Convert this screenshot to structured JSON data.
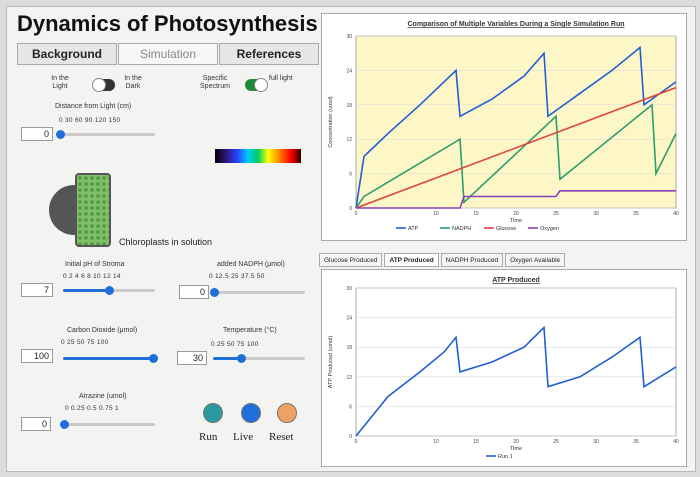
{
  "app": {
    "title": "Dynamics of Photosynthesis"
  },
  "tabs": [
    "Background",
    "Simulation",
    "References"
  ],
  "controls": {
    "light_toggle": {
      "left_label": "In the Light",
      "right_label": "In the Dark"
    },
    "spectrum_toggle": {
      "left_label": "Specific Spectrum",
      "right_label": "full light"
    },
    "distance": {
      "label": "Distance from Light (cm)",
      "ticks": "0    30   60   90   120  150",
      "value": "0"
    },
    "ph": {
      "label": "Initial pH of Stroma",
      "ticks": "0  2  4  6  8  10 12 14",
      "value": "7"
    },
    "nadph": {
      "label": "added NADPH (μmol)",
      "ticks": "0     12.5   25   37.5   50",
      "value": "0"
    },
    "co2": {
      "label": "Carbon Dioxide (μmol)",
      "ticks": "0    25    50    75   100",
      "value": "100"
    },
    "temp": {
      "label": "Temperature (°C)",
      "ticks": "0    25    50    75   100",
      "value": "30"
    },
    "atrazine": {
      "label": "Atrazine (umol)",
      "ticks": "0  0.25  0.5  0.75   1",
      "value": "0"
    },
    "caption": "Chloroplasts in solution",
    "buttons": {
      "run": "Run",
      "live": "Live",
      "reset": "Reset"
    }
  },
  "chart_top": {
    "title": "Comparison of Multiple Variables During a Single Simulation Run",
    "ylabel": "Concentration (umol)",
    "xlabel": "Time",
    "yticks": [
      "30",
      "24",
      "18",
      "12",
      "6",
      "0"
    ],
    "xticks": [
      "0",
      "10",
      "15",
      "20",
      "25",
      "30",
      "35",
      "40"
    ],
    "legend": [
      "ATP",
      "NADPH",
      "Glucose",
      "Oxygen"
    ]
  },
  "panel_tabs": [
    "Glucose Produced",
    "ATP Produced",
    "NADPH Produced",
    "Oxygen Available"
  ],
  "chart_bottom": {
    "title": "ATP Produced",
    "ylabel": "ATP Produced (umol)",
    "xlabel": "Time",
    "yticks": [
      "30",
      "24",
      "18",
      "12",
      "6",
      "0"
    ],
    "xticks": [
      "0",
      "10",
      "15",
      "20",
      "25",
      "30",
      "35",
      "40"
    ],
    "legend": [
      "Run 1"
    ]
  },
  "colors": {
    "atp": "#1f5fd6",
    "nadph": "#2e9e6a",
    "glucose": "#e0453a",
    "oxygen": "#8a3fb8",
    "run1": "#1f5fd6"
  },
  "chart_data": [
    {
      "type": "line",
      "title": "Comparison of Multiple Variables During a Single Simulation Run",
      "xlabel": "Time",
      "ylabel": "Concentration (umol)",
      "xlim": [
        0,
        40
      ],
      "ylim": [
        0,
        30
      ],
      "series": [
        {
          "name": "ATP",
          "x": [
            0,
            1,
            4,
            8,
            11,
            12.5,
            13,
            17,
            21,
            23.5,
            24,
            28,
            32,
            35.5,
            36,
            40
          ],
          "y": [
            0,
            9,
            13,
            18,
            22,
            24,
            16,
            19,
            23,
            27,
            16,
            20,
            24,
            28,
            18,
            22
          ]
        },
        {
          "name": "NADPH",
          "x": [
            0,
            1,
            13,
            13.5,
            25,
            25.5,
            37,
            37.5,
            40
          ],
          "y": [
            0,
            2,
            12,
            1,
            16,
            5,
            18,
            6,
            13
          ]
        },
        {
          "name": "Glucose",
          "x": [
            0,
            40
          ],
          "y": [
            0,
            21
          ]
        },
        {
          "name": "Oxygen",
          "x": [
            0,
            13,
            13.5,
            25,
            25.5,
            40
          ],
          "y": [
            0,
            0,
            2,
            2,
            3,
            3
          ]
        }
      ]
    },
    {
      "type": "line",
      "title": "ATP Produced",
      "xlabel": "Time",
      "ylabel": "ATP Produced (umol)",
      "xlim": [
        0,
        40
      ],
      "ylim": [
        0,
        30
      ],
      "series": [
        {
          "name": "Run 1",
          "x": [
            0,
            1,
            4,
            8,
            11,
            12.5,
            13,
            17,
            21,
            23.5,
            24,
            28,
            32,
            35.5,
            36,
            40
          ],
          "y": [
            0,
            2,
            8,
            13,
            17,
            20,
            13,
            15,
            18,
            22,
            10,
            12,
            16,
            20,
            10,
            14
          ]
        }
      ]
    }
  ]
}
